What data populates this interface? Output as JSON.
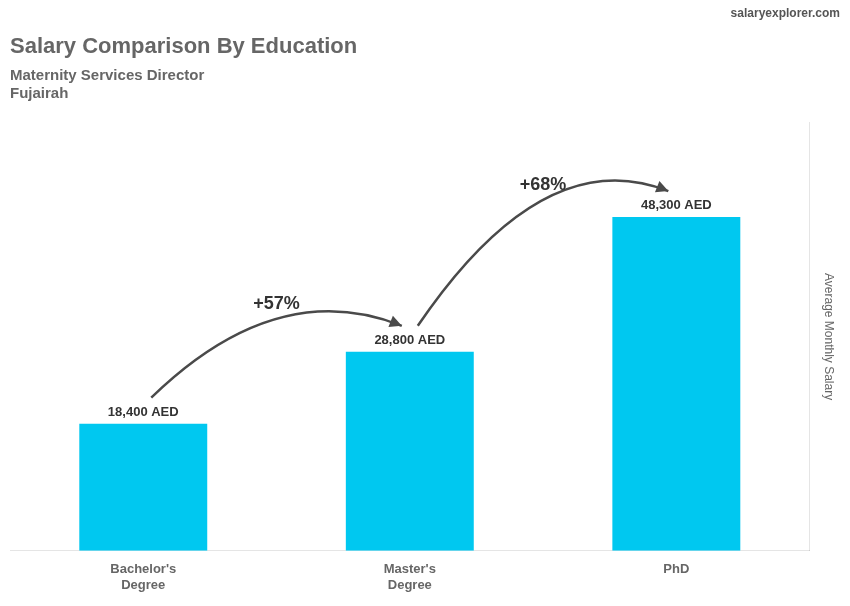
{
  "chart_data": {
    "type": "bar",
    "title": "Salary Comparison By Education",
    "subtitle": [
      "Maternity Services Director",
      "Fujairah"
    ],
    "categories": [
      "Bachelor's\nDegree",
      "Master's\nDegree",
      "PhD"
    ],
    "values": [
      18400,
      28800,
      48300
    ],
    "value_labels": [
      "18,400 AED",
      "28,800 AED",
      "48,300 AED"
    ],
    "data_labels": true,
    "color": "#00C8F0",
    "ylabel": "Average Monthly Salary",
    "ylim": [
      0,
      62000
    ],
    "grid": false,
    "tick_labels": "x",
    "annotations": [
      {
        "text": "+57%",
        "from": "Bachelor's\nDegree",
        "to": "Master's\nDegree"
      },
      {
        "text": "+68%",
        "from": "Master's\nDegree",
        "to": "PhD"
      },
      {
        "text": "salaryexplorer.com"
      }
    ]
  }
}
